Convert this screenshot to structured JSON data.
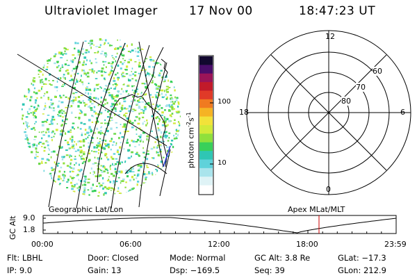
{
  "header": {
    "instrument": "Ultraviolet Imager",
    "date": "17 Nov 00",
    "time": "18:47:23 UT"
  },
  "colorbar": {
    "unit_label": "photon cm",
    "unit_exp1": "-2",
    "unit_s": "s",
    "unit_exp2": "-1",
    "tick_high": "100",
    "tick_low": "10",
    "colors": [
      "#ffffff",
      "#dff3f6",
      "#a9e4ec",
      "#5fd2da",
      "#2fc6b4",
      "#39d05a",
      "#8fe03c",
      "#d2ea3a",
      "#f2e23a",
      "#f5b324",
      "#f07a20",
      "#e03a28",
      "#c21a2a",
      "#9a1458",
      "#4a0d6a",
      "#12082e"
    ]
  },
  "polar": {
    "labels": {
      "top": "12",
      "bottom": "0",
      "left": "18",
      "right": "6"
    },
    "lat_labels": [
      "60",
      "70",
      "80"
    ]
  },
  "orbit": {
    "left_label": "Geographic Lat/Lon",
    "right_label": "Apex MLat/MLT",
    "axis_title": "GC Alt",
    "y_max": "9.0",
    "y_min": "1.8",
    "x_ticks": [
      "00:00",
      "06:00",
      "12:00",
      "18:00",
      "23:59"
    ],
    "marker_color": "#cc0000"
  },
  "info": {
    "flt": "Flt: LBHL",
    "ip": "IP:  9.0",
    "door": "Door: Closed",
    "gain": "Gain: 13",
    "mode": "Mode: Normal",
    "dsp": "Dsp: −169.5",
    "gcalt": "GC Alt: 3.8 Re",
    "seq": "Seq: 39",
    "glat": "GLat: −17.3",
    "glon": "GLon: 212.9"
  }
}
